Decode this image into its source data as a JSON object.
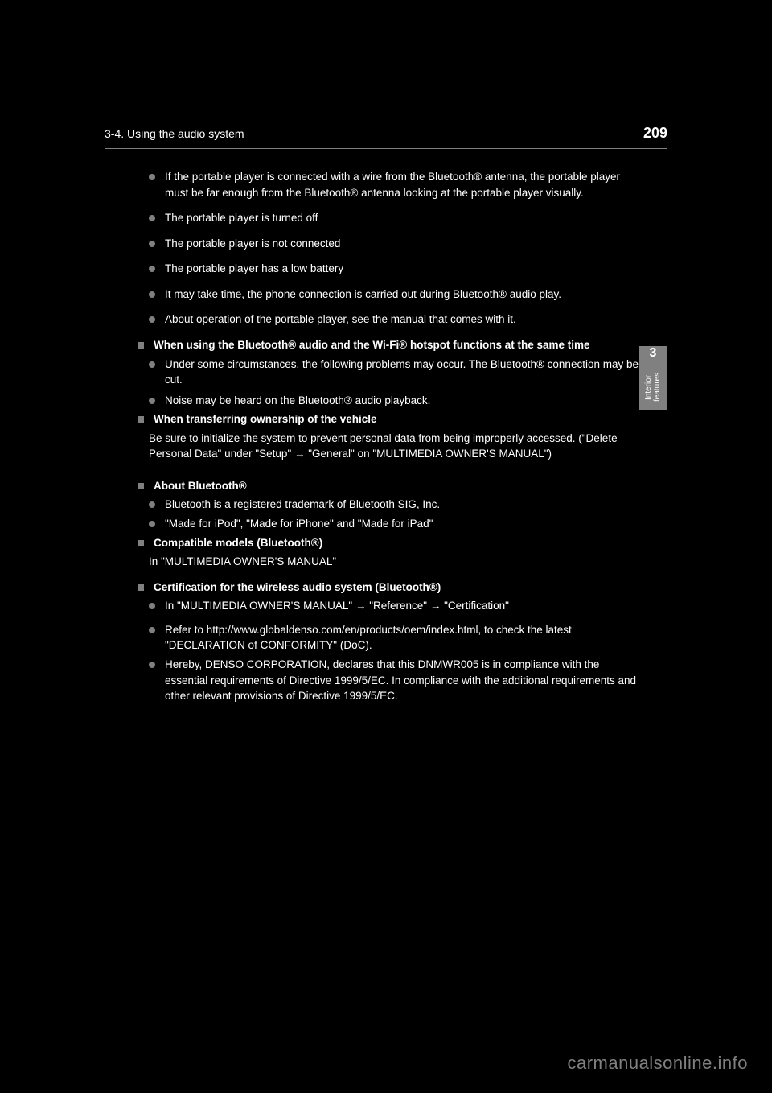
{
  "header": {
    "page_number": "209",
    "section": "3-4. Using the audio system"
  },
  "side_tab": {
    "number": "3",
    "label": "Interior features"
  },
  "items": [
    {
      "type": "bullet",
      "text": "If the portable player is connected with a wire from the Bluetooth® antenna, the portable player must be far enough from the Bluetooth® antenna looking at the portable player visually.",
      "spacing": 0
    },
    {
      "type": "bullet",
      "text": "The portable player is turned off",
      "spacing": 12
    },
    {
      "type": "bullet",
      "text": "The portable player is not connected",
      "spacing": 12
    },
    {
      "type": "bullet",
      "text": "The portable player has a low battery",
      "spacing": 12
    },
    {
      "type": "bullet",
      "text": "It may take time, the phone connection is carried out during Bluetooth® audio play.",
      "spacing": 12
    },
    {
      "type": "bullet",
      "text": "About operation of the portable player, see the manual that comes with it.",
      "spacing": 12
    },
    {
      "type": "square",
      "text": "When using the Bluetooth® audio and the Wi-Fi® hotspot functions at the same time",
      "heading": true,
      "spacing": 12
    },
    {
      "type": "bullet",
      "text": "Under some circumstances, the following problems may occur. The Bluetooth® connection may be cut.",
      "spacing": 0,
      "indent": true
    },
    {
      "type": "bullet",
      "text": "Noise may be heard on the Bluetooth® audio playback.",
      "spacing": 6,
      "indent": true
    },
    {
      "type": "square",
      "text": "When transferring ownership of the vehicle",
      "heading": true,
      "spacing": 4
    },
    {
      "type": "plain",
      "text": "Be sure to initialize the system to prevent personal data from being improperly accessed. (\"Delete Personal Data\" under \"Setup\" → \"General\" on \"MULTIMEDIA OWNER'S MANUAL\")",
      "spacing": 0
    },
    {
      "type": "square",
      "text": "About Bluetooth®",
      "heading": true,
      "spacing": 20
    },
    {
      "type": "bullet",
      "text": "Bluetooth is a registered trademark of Bluetooth SIG, Inc.",
      "spacing": 0,
      "indent": true
    },
    {
      "type": "bullet",
      "text": "\"Made for iPod\", \"Made for iPhone\" and \"Made for iPad\"",
      "spacing": 0,
      "indent": true
    },
    {
      "type": "square",
      "text": "Compatible models (Bluetooth®)",
      "heading": true,
      "spacing": 4
    },
    {
      "type": "plain",
      "text": "In \"MULTIMEDIA OWNER'S MANUAL\"",
      "spacing": 0
    },
    {
      "type": "square",
      "text": "Certification for the wireless audio system (Bluetooth®)",
      "heading": true,
      "spacing": 12
    },
    {
      "type": "bullet",
      "text": "In \"MULTIMEDIA OWNER'S MANUAL\" → \"Reference\" → \"Certification\"",
      "spacing": 0,
      "indent": true
    },
    {
      "type": "bullet",
      "text": "Refer to http://www.globaldenso.com/en/products/oem/index.html, to check the latest \"DECLARATION of CONFORMITY\" (DoC).",
      "spacing": 10,
      "indent": true
    },
    {
      "type": "bullet",
      "text": "Hereby, DENSO CORPORATION, declares that this DNMWR005 is in compliance with the essential requirements of Directive 1999/5/EC. In compliance with the additional requirements and other relevant provisions of Directive 1999/5/EC.",
      "spacing": 0,
      "indent": true
    }
  ],
  "watermark": "carmanualsonline.info"
}
